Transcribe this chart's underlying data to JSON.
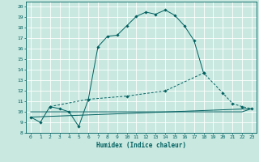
{
  "title": "",
  "xlabel": "Humidex (Indice chaleur)",
  "xlim": [
    -0.5,
    23.5
  ],
  "ylim": [
    8.0,
    20.5
  ],
  "xticks": [
    0,
    1,
    2,
    3,
    4,
    5,
    6,
    7,
    8,
    9,
    10,
    11,
    12,
    13,
    14,
    15,
    16,
    17,
    18,
    19,
    20,
    21,
    22,
    23
  ],
  "yticks": [
    8,
    9,
    10,
    11,
    12,
    13,
    14,
    15,
    16,
    17,
    18,
    19,
    20
  ],
  "bg_color": "#c8e8e0",
  "grid_color": "#ffffff",
  "line_color": "#006060",
  "curve1_x": [
    0,
    1,
    2,
    3,
    4,
    5,
    6,
    7,
    8,
    9,
    10,
    11,
    12,
    13,
    14,
    15,
    16,
    17,
    18
  ],
  "curve1_y": [
    9.5,
    9.0,
    10.5,
    10.3,
    10.0,
    8.6,
    11.2,
    16.2,
    17.2,
    17.3,
    18.2,
    19.1,
    19.5,
    19.3,
    19.7,
    19.2,
    18.2,
    16.8,
    13.7
  ],
  "curve2_x": [
    2,
    6,
    10,
    14,
    18,
    20,
    21,
    22,
    23
  ],
  "curve2_y": [
    10.5,
    11.2,
    11.5,
    12.0,
    13.7,
    11.8,
    10.8,
    10.5,
    10.3
  ],
  "curve3_x": [
    0,
    1,
    2,
    3,
    4,
    5,
    6,
    7,
    8,
    9,
    10,
    11,
    12,
    13,
    14,
    15,
    16,
    17,
    18,
    19,
    20,
    21,
    22,
    23
  ],
  "curve3_y": [
    10.0,
    10.0,
    10.0,
    10.0,
    10.0,
    10.0,
    10.0,
    10.0,
    10.0,
    10.0,
    10.0,
    10.0,
    10.0,
    10.0,
    10.0,
    10.0,
    10.0,
    10.0,
    10.0,
    10.0,
    10.0,
    10.0,
    10.0,
    10.3
  ],
  "curve4_x": [
    0,
    23
  ],
  "curve4_y": [
    9.5,
    10.3
  ]
}
